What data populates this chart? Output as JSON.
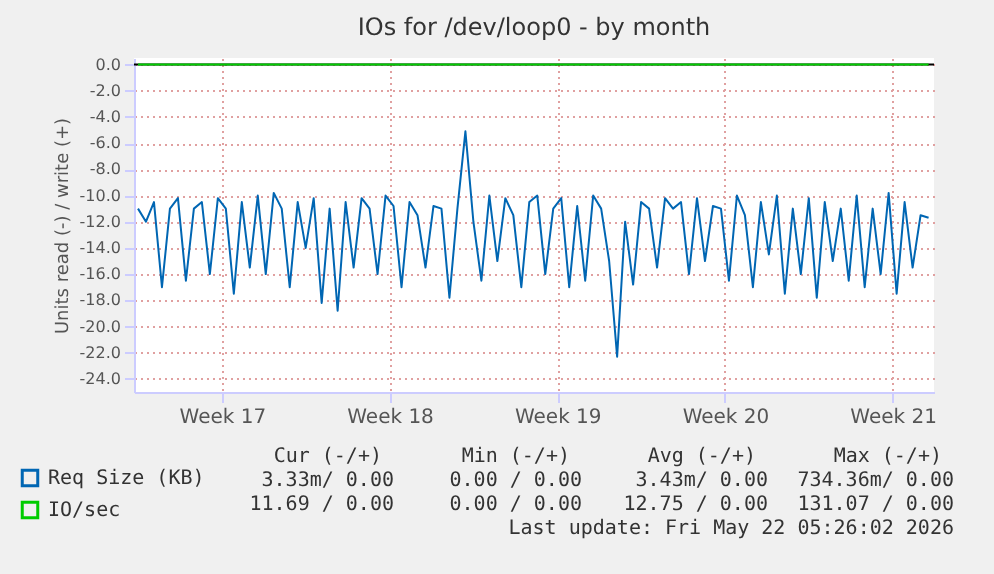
{
  "chart_data": {
    "type": "line",
    "title": "IOs for /dev/loop0 - by month",
    "ylabel": "Units read (-) / write (+)",
    "xlim": [
      "2026-04-18T20:00",
      "2026-05-22T05:26"
    ],
    "xticks": [
      {
        "value": "2026-04-22T12:00",
        "label": "Week 17"
      },
      {
        "value": "2026-04-29T12:00",
        "label": "Week 18"
      },
      {
        "value": "2026-05-06T12:00",
        "label": "Week 19"
      },
      {
        "value": "2026-05-13T12:00",
        "label": "Week 20"
      },
      {
        "value": "2026-05-20T12:00",
        "label": "Week 21"
      }
    ],
    "ylim": [
      -25,
      0.5
    ],
    "yticks": [
      {
        "value": 0,
        "label": "0.0"
      },
      {
        "value": -2,
        "label": "-2.0"
      },
      {
        "value": -4,
        "label": "-4.0"
      },
      {
        "value": -6,
        "label": "-6.0"
      },
      {
        "value": -8,
        "label": "-8.0"
      },
      {
        "value": -10,
        "label": "-10.0"
      },
      {
        "value": -12,
        "label": "-12.0"
      },
      {
        "value": -14,
        "label": "-14.0"
      },
      {
        "value": -16,
        "label": "-16.0"
      },
      {
        "value": -18,
        "label": "-18.0"
      },
      {
        "value": -20,
        "label": "-20.0"
      },
      {
        "value": -22,
        "label": "-22.0"
      },
      {
        "value": -24,
        "label": "-24.0"
      }
    ],
    "grid": true,
    "legend": "bottom left",
    "ref_lines": [
      {
        "axis": "y",
        "value": 0,
        "color": "#000000"
      }
    ],
    "series": [
      {
        "name": "Req Size (KB)",
        "color": "#0066b3",
        "x": [
          "2026-04-19T00:00",
          "2026-04-19T08:00",
          "2026-04-19T16:00",
          "2026-04-20T00:00",
          "2026-04-20T08:00",
          "2026-04-20T16:00",
          "2026-04-21T00:00",
          "2026-04-21T08:00",
          "2026-04-21T16:00",
          "2026-04-22T00:00",
          "2026-04-22T08:00",
          "2026-04-22T16:00",
          "2026-04-23T00:00",
          "2026-04-23T08:00",
          "2026-04-23T16:00",
          "2026-04-24T00:00",
          "2026-04-24T08:00",
          "2026-04-24T16:00",
          "2026-04-25T00:00",
          "2026-04-25T08:00",
          "2026-04-25T16:00",
          "2026-04-26T00:00",
          "2026-04-26T08:00",
          "2026-04-26T16:00",
          "2026-04-27T00:00",
          "2026-04-27T08:00",
          "2026-04-27T16:00",
          "2026-04-28T00:00",
          "2026-04-28T08:00",
          "2026-04-28T16:00",
          "2026-04-29T00:00",
          "2026-04-29T08:00",
          "2026-04-29T16:00",
          "2026-04-30T00:00",
          "2026-04-30T08:00",
          "2026-04-30T16:00",
          "2026-05-01T00:00",
          "2026-05-01T08:00",
          "2026-05-01T16:00",
          "2026-05-02T00:00",
          "2026-05-02T08:00",
          "2026-05-02T16:00",
          "2026-05-03T00:00",
          "2026-05-03T08:00",
          "2026-05-03T16:00",
          "2026-05-04T00:00",
          "2026-05-04T08:00",
          "2026-05-04T16:00",
          "2026-05-05T00:00",
          "2026-05-05T08:00",
          "2026-05-05T16:00",
          "2026-05-06T00:00",
          "2026-05-06T08:00",
          "2026-05-06T16:00",
          "2026-05-07T00:00",
          "2026-05-07T08:00",
          "2026-05-07T16:00",
          "2026-05-08T00:00",
          "2026-05-08T08:00",
          "2026-05-08T16:00",
          "2026-05-09T00:00",
          "2026-05-09T08:00",
          "2026-05-09T16:00",
          "2026-05-10T00:00",
          "2026-05-10T08:00",
          "2026-05-10T16:00",
          "2026-05-11T00:00",
          "2026-05-11T08:00",
          "2026-05-11T16:00",
          "2026-05-12T00:00",
          "2026-05-12T08:00",
          "2026-05-12T16:00",
          "2026-05-13T00:00",
          "2026-05-13T08:00",
          "2026-05-13T16:00",
          "2026-05-14T00:00",
          "2026-05-14T08:00",
          "2026-05-14T16:00",
          "2026-05-15T00:00",
          "2026-05-15T08:00",
          "2026-05-15T16:00",
          "2026-05-16T00:00",
          "2026-05-16T08:00",
          "2026-05-16T16:00",
          "2026-05-17T00:00",
          "2026-05-17T08:00",
          "2026-05-17T16:00",
          "2026-05-18T00:00",
          "2026-05-18T08:00",
          "2026-05-18T16:00",
          "2026-05-19T00:00",
          "2026-05-19T08:00",
          "2026-05-19T16:00",
          "2026-05-20T00:00",
          "2026-05-20T08:00",
          "2026-05-20T16:00",
          "2026-05-21T00:00",
          "2026-05-21T08:00",
          "2026-05-21T16:00",
          "2026-05-22T00:00"
        ],
        "values": [
          -11,
          -12,
          -10.5,
          -17,
          -11,
          -10.2,
          -16.5,
          -11,
          -10.5,
          -16,
          -10.2,
          -11,
          -17.5,
          -10.5,
          -15.5,
          -10,
          -16,
          -9.8,
          -11,
          -17,
          -10.5,
          -14,
          -10.2,
          -18.2,
          -11,
          -18.8,
          -10.5,
          -15.5,
          -10.2,
          -11,
          -16,
          -10,
          -10.8,
          -17,
          -10.5,
          -11.5,
          -15.5,
          -10.8,
          -11,
          -17.8,
          -11,
          -5.1,
          -12,
          -16.5,
          -10,
          -15,
          -10.2,
          -11.5,
          -17,
          -10.5,
          -10,
          -16,
          -11,
          -10.2,
          -17,
          -10.8,
          -16.5,
          -10,
          -11,
          -15,
          -22.3,
          -12,
          -16.8,
          -10.5,
          -11,
          -15.5,
          -10.2,
          -11,
          -10.5,
          -16,
          -10.2,
          -15,
          -10.8,
          -11,
          -16.5,
          -10,
          -11.5,
          -17,
          -10.5,
          -14.5,
          -10,
          -17.5,
          -11,
          -16,
          -10.2,
          -17.8,
          -10.5,
          -15,
          -11,
          -16.5,
          -10,
          -17,
          -11,
          -16,
          -9.8,
          -17.5,
          -10.5,
          -15.5,
          -11.5,
          -11.7
        ]
      },
      {
        "name": "IO/sec",
        "color": "#00cc00",
        "x": [
          "2026-04-19T00:00",
          "2026-05-22T00:00"
        ],
        "values": [
          0,
          0
        ]
      }
    ],
    "annotations": [
      "Cur (-/+)",
      "Min (-/+)",
      "Avg (-/+)",
      "Max (-/+)",
      "3.33m/ 0.00",
      "0.00 / 0.00",
      "3.43m/ 0.00",
      "734.36m/ 0.00",
      "11.69 / 0.00",
      "0.00 / 0.00",
      "12.75 / 0.00",
      "131.07 / 0.00",
      "Last update: Fri May 22 05:26:02 2026"
    ]
  }
}
